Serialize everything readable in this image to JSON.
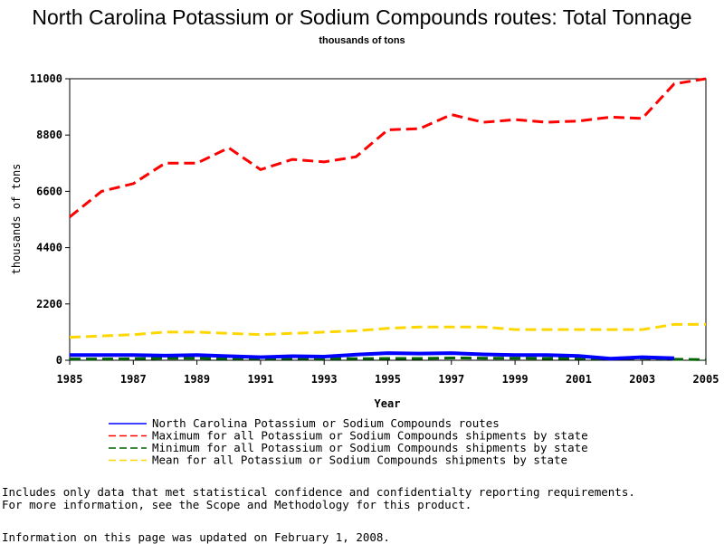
{
  "chart_data": {
    "type": "line",
    "title": "North Carolina Potassium or Sodium Compounds routes: Total Tonnage",
    "subtitle": "thousands of tons",
    "xlabel": "Year",
    "ylabel": "thousands of tons",
    "xlim": [
      1985,
      2005
    ],
    "ylim": [
      0,
      11000
    ],
    "x_ticks": [
      "1985",
      "1987",
      "1989",
      "1991",
      "1993",
      "1995",
      "1997",
      "1999",
      "2001",
      "2003",
      "2005"
    ],
    "y_ticks": [
      "0",
      "2200",
      "4400",
      "6600",
      "8800",
      "11000"
    ],
    "grid": false,
    "legend_position": "bottom",
    "series": [
      {
        "name": "North Carolina Potassium or Sodium Compounds routes",
        "color": "#0000ff",
        "style": "solid",
        "x": [
          1985,
          1986,
          1987,
          1988,
          1989,
          1990,
          1991,
          1992,
          1993,
          1994,
          1995,
          1996,
          1997,
          1998,
          1999,
          2000,
          2001,
          2002,
          2003,
          2004
        ],
        "values": [
          200,
          200,
          200,
          180,
          200,
          160,
          120,
          160,
          140,
          220,
          280,
          260,
          280,
          230,
          200,
          200,
          170,
          60,
          120,
          80
        ]
      },
      {
        "name": "Maximum for all Potassium or Sodium Compounds shipments by state",
        "color": "#ff0000",
        "style": "dashed",
        "x": [
          1985,
          1986,
          1987,
          1988,
          1989,
          1990,
          1991,
          1992,
          1993,
          1994,
          1995,
          1996,
          1997,
          1998,
          1999,
          2000,
          2001,
          2002,
          2003,
          2004,
          2005
        ],
        "values": [
          5600,
          6600,
          6900,
          7700,
          7700,
          8300,
          7450,
          7850,
          7750,
          7950,
          9000,
          9050,
          9600,
          9300,
          9400,
          9300,
          9350,
          9500,
          9450,
          10800,
          11000
        ]
      },
      {
        "name": "Minimum for all Potassium or Sodium Compounds shipments by state",
        "color": "#006400",
        "style": "dashed",
        "x": [
          1985,
          1986,
          1987,
          1988,
          1989,
          1990,
          1991,
          1992,
          1993,
          1994,
          1995,
          1996,
          1997,
          1998,
          1999,
          2000,
          2001,
          2002,
          2003,
          2004,
          2005
        ],
        "values": [
          50,
          50,
          60,
          80,
          80,
          60,
          60,
          70,
          60,
          60,
          70,
          70,
          90,
          80,
          80,
          70,
          70,
          50,
          80,
          40,
          20
        ]
      },
      {
        "name": "Mean for all Potassium or Sodium Compounds shipments by state",
        "color": "#ffd700",
        "style": "dashed",
        "x": [
          1985,
          1986,
          1987,
          1988,
          1989,
          1990,
          1991,
          1992,
          1993,
          1994,
          1995,
          1996,
          1997,
          1998,
          1999,
          2000,
          2001,
          2002,
          2003,
          2004,
          2005
        ],
        "values": [
          900,
          950,
          1000,
          1100,
          1100,
          1050,
          1000,
          1050,
          1100,
          1150,
          1250,
          1300,
          1300,
          1300,
          1200,
          1200,
          1200,
          1200,
          1200,
          1400,
          1400
        ]
      }
    ]
  },
  "footnotes": {
    "line1": "Includes only data that met statistical confidence and confidentialty reporting requirements.",
    "line2": "For more information, see the Scope and Methodology for this product.",
    "updated": "Information on this page was updated on February 1, 2008."
  }
}
